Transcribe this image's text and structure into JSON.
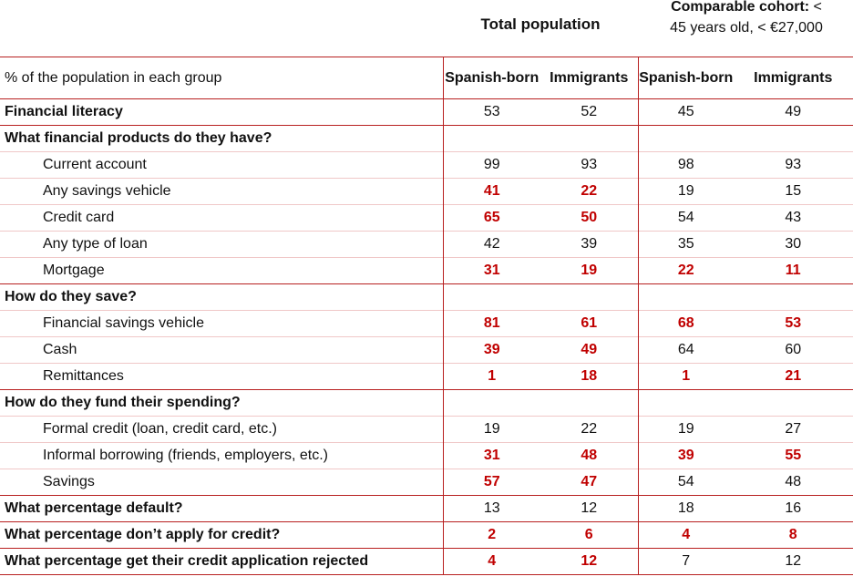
{
  "header": {
    "total_population": "Total population",
    "cohort_bold": "Comparable cohort:",
    "cohort_line1_tail": " <",
    "cohort_line2": "45 years old, < €27,000"
  },
  "columns": {
    "row_label": "% of the population in each group",
    "spanish_born": "Spanish-born",
    "immigrants": "Immigrants",
    "cohort_spanish_born": "Spanish-born",
    "cohort_immigrants": "Immigrants"
  },
  "colors": {
    "highlight": "#c00000",
    "border": "#b82020"
  },
  "rows": [
    {
      "type": "summary",
      "label": "Financial literacy",
      "values": [
        "53",
        "52",
        "45",
        "49"
      ],
      "highlight": [
        false,
        false,
        false,
        false
      ]
    },
    {
      "type": "section",
      "label": "What financial products do they have?",
      "values": [
        "",
        "",
        "",
        ""
      ],
      "highlight": [
        false,
        false,
        false,
        false
      ]
    },
    {
      "type": "item",
      "label": "Current account",
      "values": [
        "99",
        "93",
        "98",
        "93"
      ],
      "highlight": [
        false,
        false,
        false,
        false
      ]
    },
    {
      "type": "item",
      "label": "Any savings vehicle",
      "values": [
        "41",
        "22",
        "19",
        "15"
      ],
      "highlight": [
        true,
        true,
        false,
        false
      ]
    },
    {
      "type": "item",
      "label": "Credit card",
      "values": [
        "65",
        "50",
        "54",
        "43"
      ],
      "highlight": [
        true,
        true,
        false,
        false
      ]
    },
    {
      "type": "item",
      "label": "Any type of loan",
      "values": [
        "42",
        "39",
        "35",
        "30"
      ],
      "highlight": [
        false,
        false,
        false,
        false
      ]
    },
    {
      "type": "item",
      "label": "Mortgage",
      "values": [
        "31",
        "19",
        "22",
        "11"
      ],
      "highlight": [
        true,
        true,
        true,
        true
      ]
    },
    {
      "type": "section",
      "label": "How do they save?",
      "values": [
        "",
        "",
        "",
        ""
      ],
      "highlight": [
        false,
        false,
        false,
        false
      ]
    },
    {
      "type": "item",
      "label": "Financial savings vehicle",
      "values": [
        "81",
        "61",
        "68",
        "53"
      ],
      "highlight": [
        true,
        true,
        true,
        true
      ]
    },
    {
      "type": "item",
      "label": "Cash",
      "values": [
        "39",
        "49",
        "64",
        "60"
      ],
      "highlight": [
        true,
        true,
        false,
        false
      ]
    },
    {
      "type": "item",
      "label": "Remittances",
      "values": [
        "1",
        "18",
        "1",
        "21"
      ],
      "highlight": [
        true,
        true,
        true,
        true
      ]
    },
    {
      "type": "section",
      "label": "How do they fund their spending?",
      "values": [
        "",
        "",
        "",
        ""
      ],
      "highlight": [
        false,
        false,
        false,
        false
      ]
    },
    {
      "type": "item",
      "label": "Formal credit (loan, credit card, etc.)",
      "values": [
        "19",
        "22",
        "19",
        "27"
      ],
      "highlight": [
        false,
        false,
        false,
        false
      ]
    },
    {
      "type": "item",
      "label": "Informal borrowing (friends, employers, etc.)",
      "values": [
        "31",
        "48",
        "39",
        "55"
      ],
      "highlight": [
        true,
        true,
        true,
        true
      ]
    },
    {
      "type": "item",
      "label": "Savings",
      "values": [
        "57",
        "47",
        "54",
        "48"
      ],
      "highlight": [
        true,
        true,
        false,
        false
      ]
    },
    {
      "type": "summary",
      "label": "What percentage default?",
      "values": [
        "13",
        "12",
        "18",
        "16"
      ],
      "highlight": [
        false,
        false,
        false,
        false
      ]
    },
    {
      "type": "summary",
      "label": "What percentage don’t apply for credit?",
      "values": [
        "2",
        "6",
        "4",
        "8"
      ],
      "highlight": [
        true,
        true,
        true,
        true
      ]
    },
    {
      "type": "summary",
      "label": "What percentage get their credit application rejected",
      "values": [
        "4",
        "12",
        "7",
        "12"
      ],
      "highlight": [
        true,
        true,
        false,
        false
      ]
    }
  ]
}
